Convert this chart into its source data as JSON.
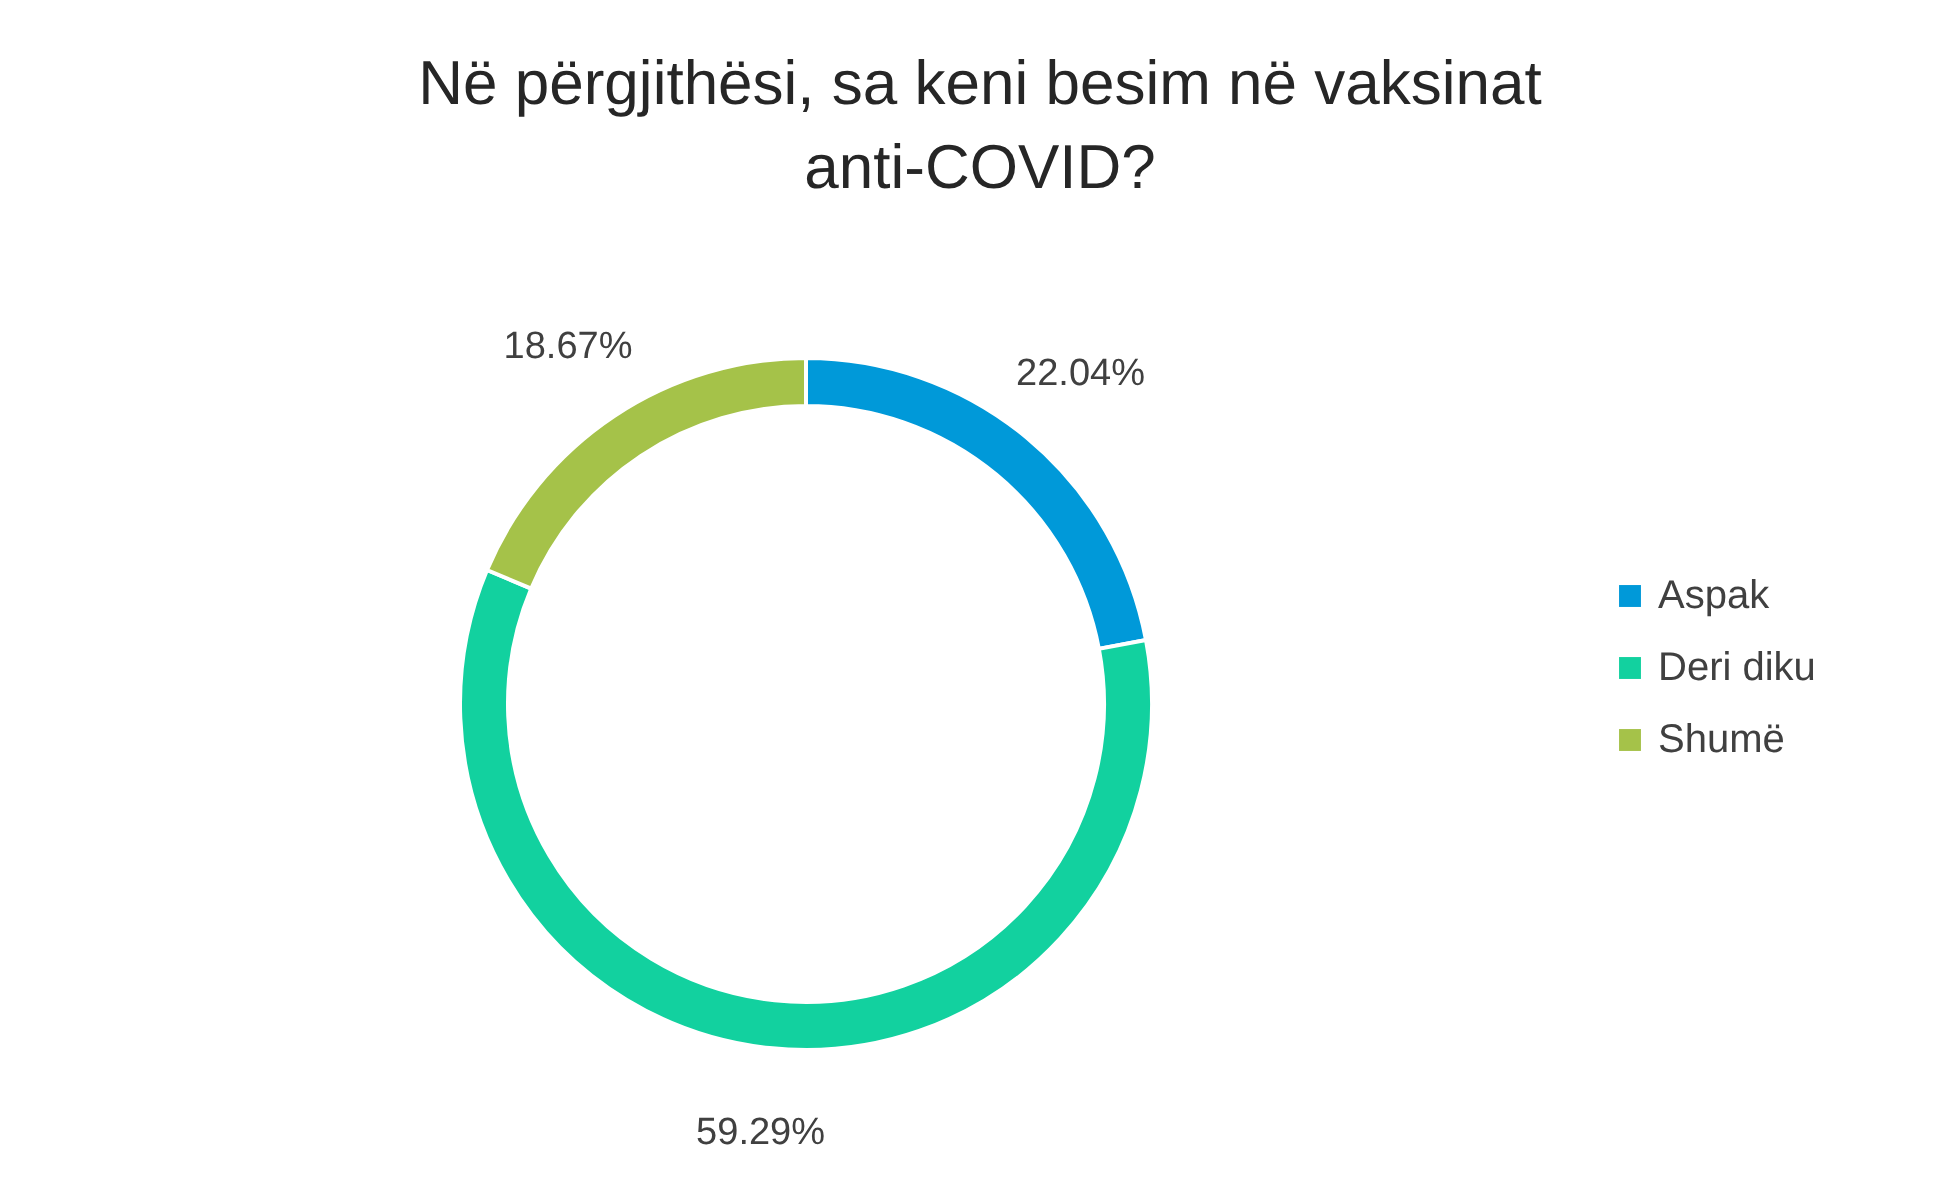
{
  "chart_data": {
    "type": "donut",
    "title": "Në përgjithësi, sa keni besim në vaksinat anti-COVID?",
    "categories": [
      "Aspak",
      "Deri diku",
      "Shumë"
    ],
    "values": [
      22.04,
      59.29,
      18.67
    ],
    "colors": [
      "#0099d9",
      "#12d19f",
      "#a5c249"
    ],
    "value_labels": [
      "22.04%",
      "59.29%",
      "18.67%"
    ],
    "legend": "right"
  }
}
